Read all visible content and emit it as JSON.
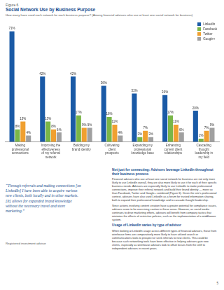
{
  "chart_data": {
    "type": "bar",
    "title": "Social Network Use by Business Purpose",
    "subtitle": "How many have used each network for each business purpose? (Among financial advisors who use at least one social network for business)",
    "categories": [
      "Making professional connections",
      "Improving the effectiveness of my referral network",
      "Building my brand identity",
      "Cultivating client prospects",
      "Expanding my professional knowledge base",
      "Enhancing current client relationships",
      "Cascading thought leadership in my field"
    ],
    "series": [
      {
        "name": "LinkedIn",
        "color": "#1a5aa6",
        "values": [
          71,
          42,
          42,
          36,
          31,
          30,
          20
        ],
        "value_labels": [
          "71%",
          "42%",
          "42%",
          "36%",
          "31%",
          "30%",
          "20%"
        ]
      },
      {
        "name": "Facebook",
        "color": "#7ab648",
        "values": [
          8,
          13,
          17,
          16,
          3,
          17,
          2
        ],
        "value_labels": [
          "8%",
          "13%",
          "17%",
          "16%",
          "3%",
          "17%",
          "2%"
        ]
      },
      {
        "name": "Twitter",
        "color": "#f0a030",
        "values": [
          13,
          8,
          9,
          11,
          7,
          11,
          7
        ],
        "value_labels": [
          "13%",
          "8%",
          "9%",
          "11%",
          "7%",
          "11%",
          "7%"
        ]
      },
      {
        "name": "Google+",
        "color": "#a0a0a0",
        "values": [
          4,
          6,
          9,
          4,
          3,
          6,
          9
        ],
        "value_labels": [
          "4%",
          "6%",
          "9%",
          "4%",
          "3%",
          "6%",
          "9%"
        ]
      }
    ],
    "ylim": [
      0,
      75
    ],
    "grid": false,
    "legend": "top-right",
    "data_labels": true,
    "tick_labels": "x"
  },
  "document": {
    "figure_label": "Figure 6",
    "quote": "“Through referrals and making connections [on LinkedIn] I have been able to acquire various new clients, both locally and in other markets. [It] allows for expanded brand knowledge without the necessary travel and store marketing.”",
    "quote_attribution": "Registered investment advisor",
    "sections": [
      {
        "heading": "Not just for connecting: Advisors leverage LinkedIn throughout their business process",
        "paragraphs": [
          "Financial advisors who use at least one social network for business are not only more likely to use LinkedIn overall, they are also more likely to use it for each of their specific business needs. Advisors are especially likely to use LinkedIn to make professional connections, improve their referral network and build their brand identity — more so than Facebook, Twitter and Google+ combined (Figure 6). Given the site’s professional context, advisors have also used LinkedIn as a forum for trusted information sharing, both to expand their professional knowledge and to cascade thought leadership.",
          "Since actions involving content creation have a greater potential for compliance issues, advisors seem to be exercising caution in these areas. However, as social media continues to drive marketing efforts, advisors will benefit from company tactics that minimize the effects of restrictive policies, such as the implementation of a middleware system."
        ]
      },
      {
        "heading": "Usage of LinkedIn varies by type of advisor",
        "paragraphs": [
          "When looking at LinkedIn usage across different types of financial advisors, those from wirehouse firms are comparatively more likely to have utilized search or communications tools to prospect or seek referrals to new clients. This could be because such networking tools have been effective in helping advisors gain new clients, especially as wirehouse advisors look to offset losses from the shift to independent advisors in recent years."
        ]
      }
    ],
    "page_number": "5"
  }
}
